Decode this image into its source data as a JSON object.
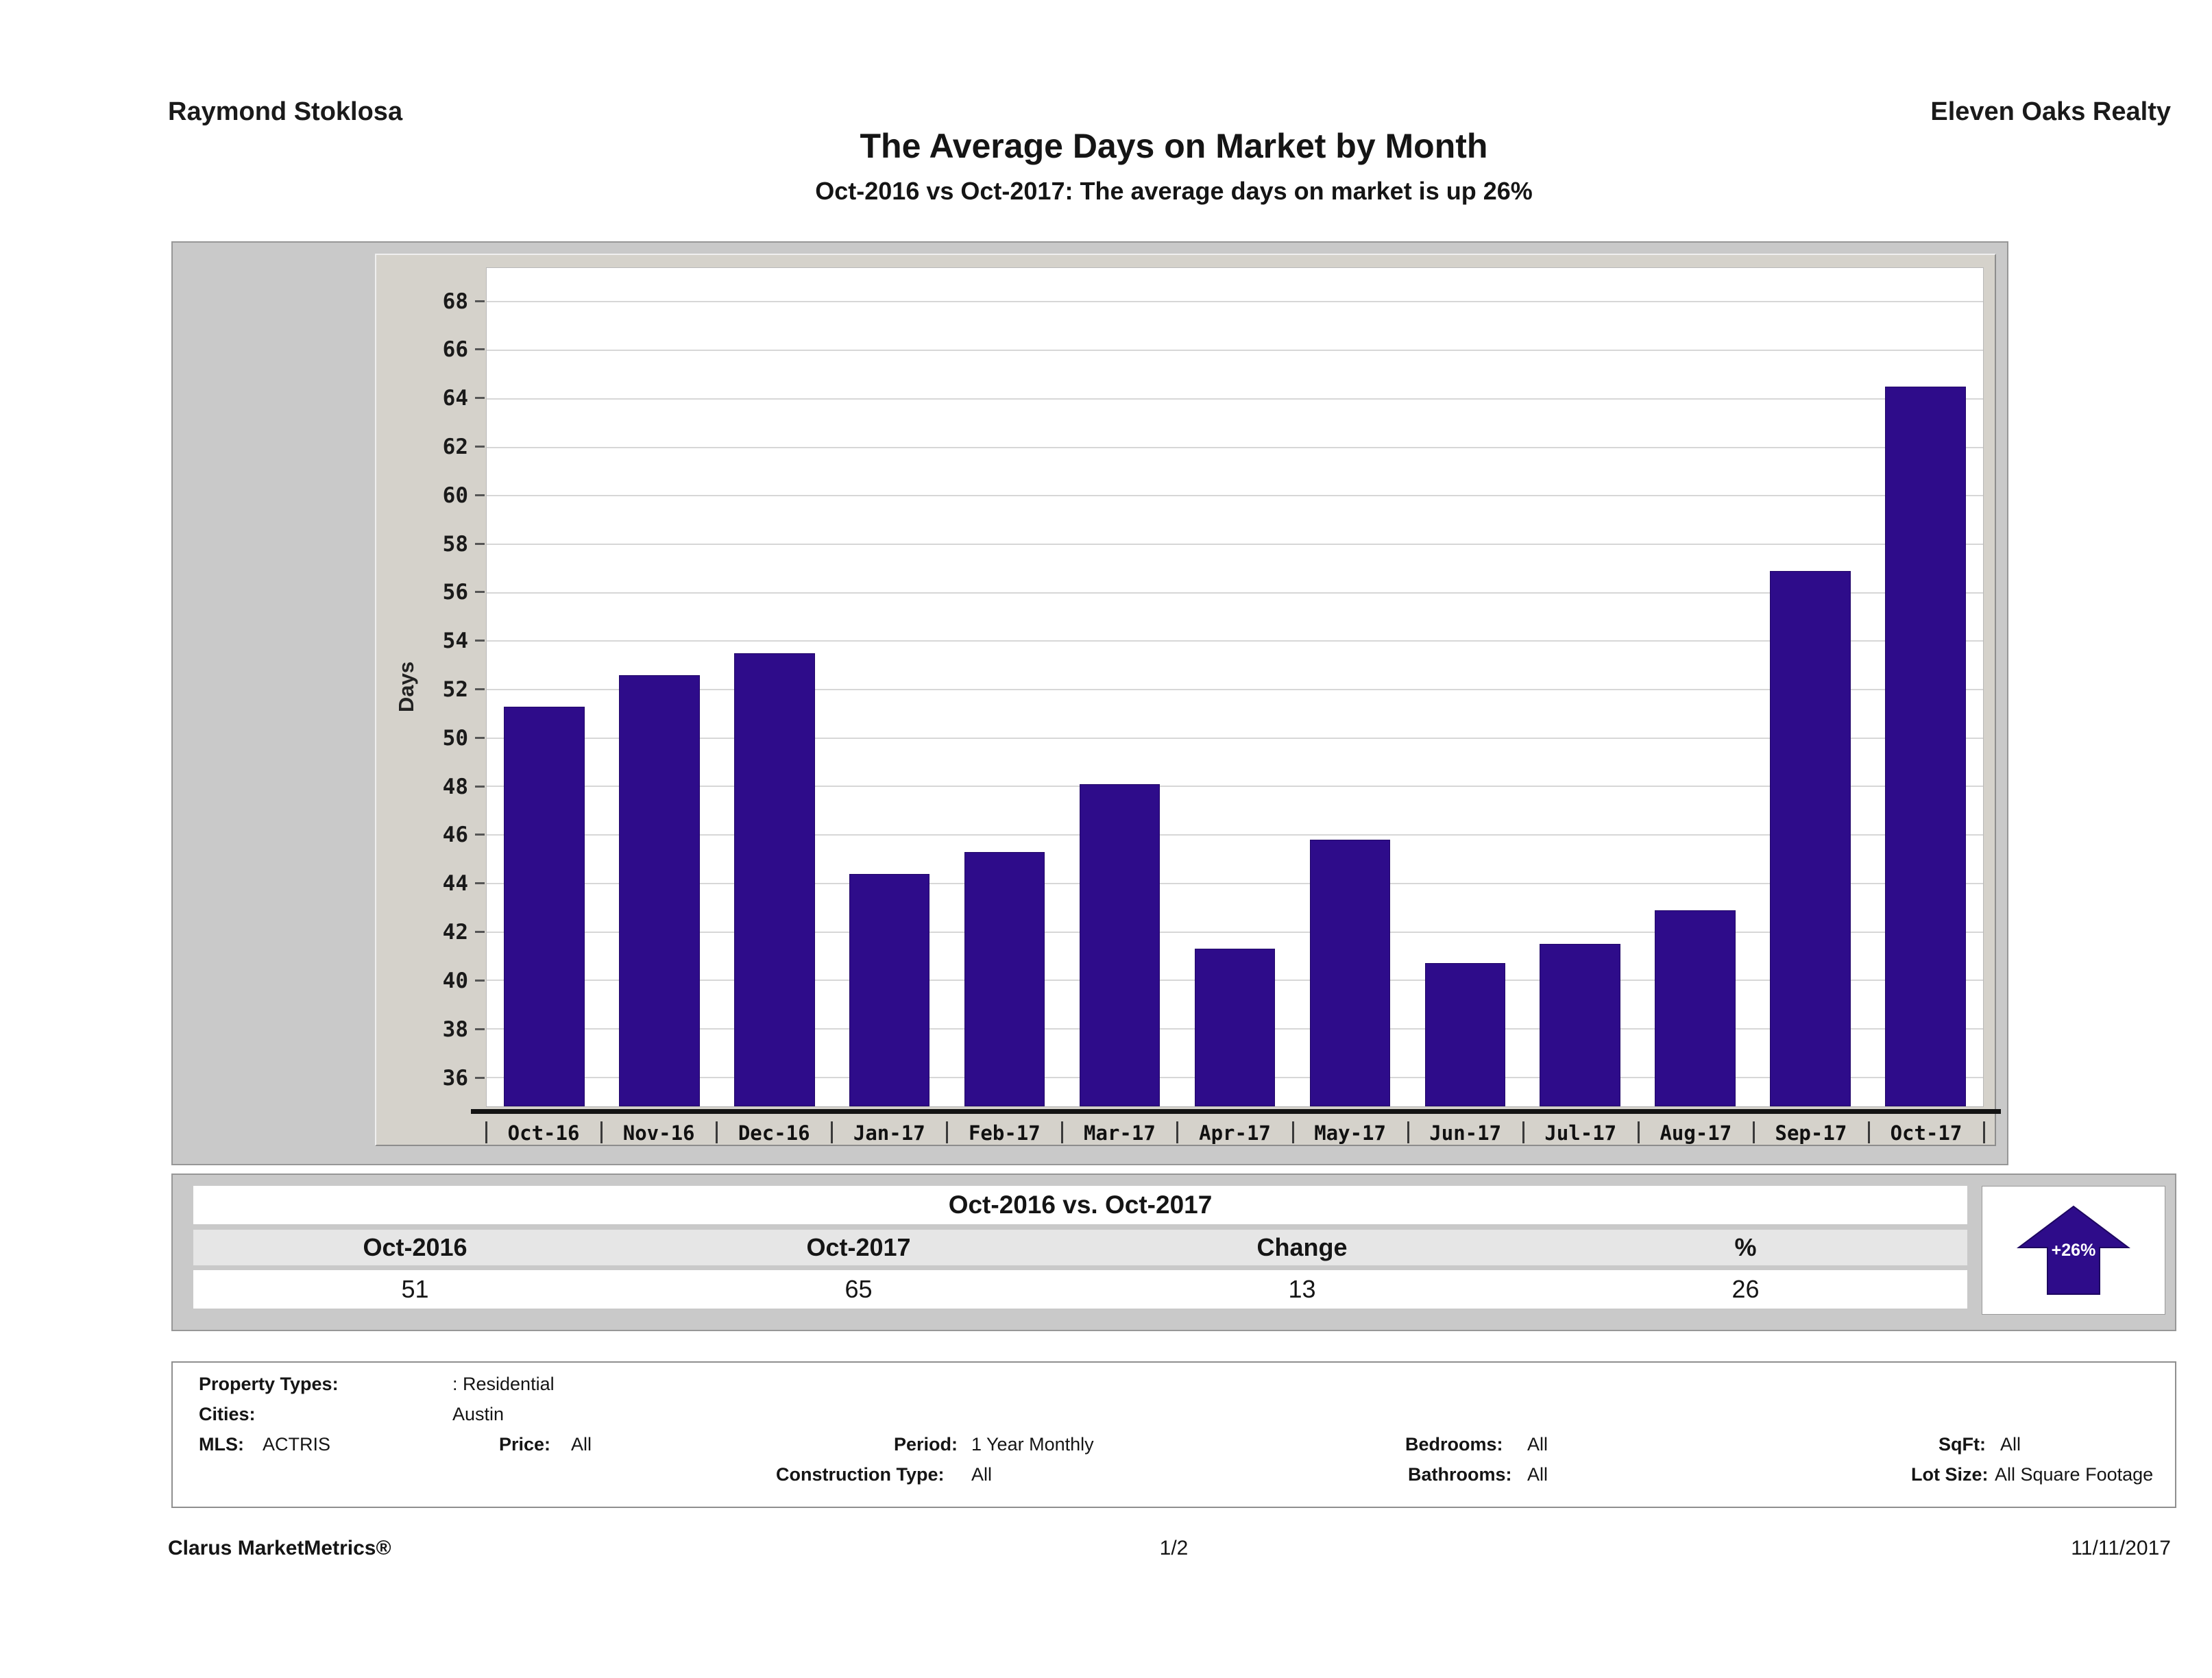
{
  "header": {
    "agent": "Raymond Stoklosa",
    "brokerage": "Eleven Oaks Realty"
  },
  "title": "The Average Days on Market by Month",
  "subtitle": "Oct-2016 vs Oct-2017: The average days on market is up 26%",
  "chart_data": {
    "type": "bar",
    "title": "The Average Days on Market by Month",
    "xlabel": "",
    "ylabel": "Days",
    "categories": [
      "Oct-16",
      "Nov-16",
      "Dec-16",
      "Jan-17",
      "Feb-17",
      "Mar-17",
      "Apr-17",
      "May-17",
      "Jun-17",
      "Jul-17",
      "Aug-17",
      "Sep-17",
      "Oct-17"
    ],
    "values": [
      51.3,
      52.6,
      53.5,
      44.4,
      45.3,
      48.1,
      41.3,
      45.8,
      40.7,
      41.5,
      42.9,
      56.9,
      64.5
    ],
    "ylim": [
      34.8,
      69.4
    ],
    "yticks": [
      36,
      38,
      40,
      42,
      44,
      46,
      48,
      50,
      52,
      54,
      56,
      58,
      60,
      62,
      64,
      66,
      68
    ],
    "bar_color": "#2e0c8a",
    "grid": true,
    "legend": "none"
  },
  "comparison_table": {
    "title": "Oct-2016 vs. Oct-2017",
    "columns": [
      "Oct-2016",
      "Oct-2017",
      "Change",
      "%"
    ],
    "values": [
      "51",
      "65",
      "13",
      "26"
    ],
    "arrow_label": "+26%",
    "arrow_direction": "up"
  },
  "criteria": {
    "property_types_label": "Property Types:",
    "property_types_value": ": Residential",
    "cities_label": "Cities:",
    "cities_value": "Austin",
    "mls_label": "MLS:",
    "mls_value": "ACTRIS",
    "price_label": "Price:",
    "price_value": "All",
    "period_label": "Period:",
    "period_value": "1 Year Monthly",
    "construction_label": "Construction Type:",
    "construction_value": "All",
    "bedrooms_label": "Bedrooms:",
    "bedrooms_value": "All",
    "bathrooms_label": "Bathrooms:",
    "bathrooms_value": "All",
    "sqft_label": "SqFt:",
    "sqft_value": "All",
    "lot_size_label": "Lot Size:",
    "lot_size_value": "All Square Footage"
  },
  "footer": {
    "brand": "Clarus MarketMetrics®",
    "page": "1/2",
    "date": "11/11/2017"
  },
  "colors": {
    "bar": "#2e0c8a",
    "chart_bg": "#d5d2cb",
    "section_bg": "#c9c9c9"
  }
}
